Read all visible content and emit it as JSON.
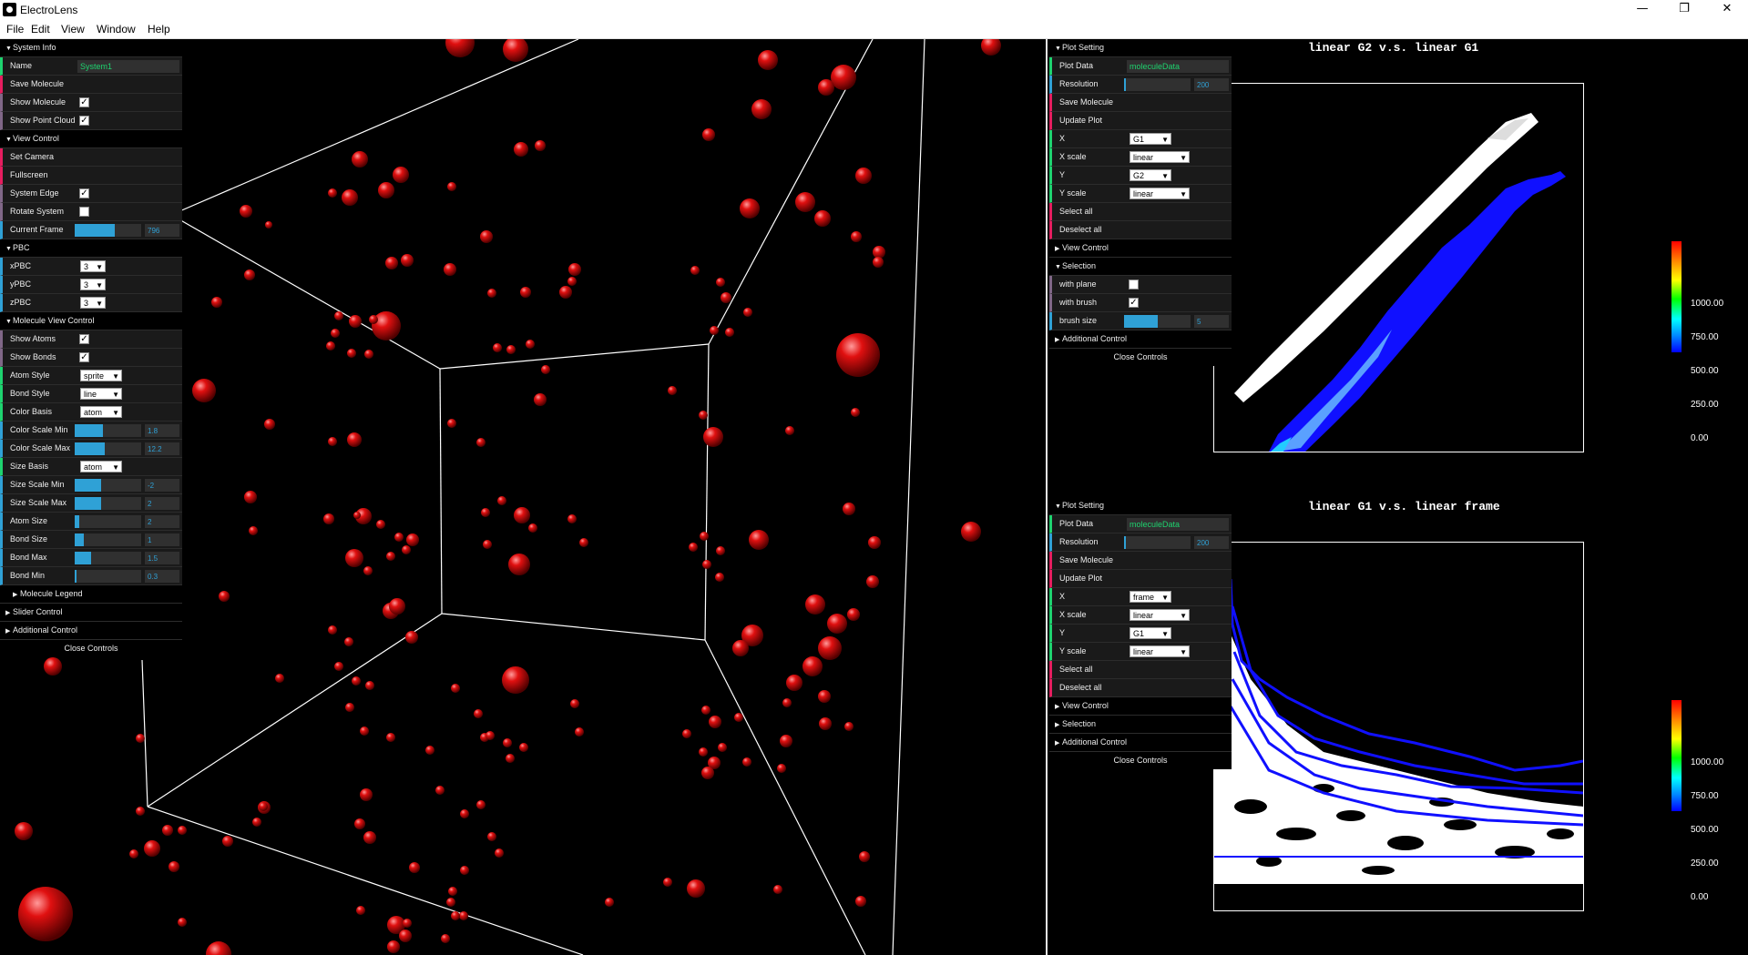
{
  "window": {
    "title": "ElectroLens",
    "minimize": "—",
    "restore": "❐",
    "close": "✕"
  },
  "menu": [
    "File",
    "Edit",
    "View",
    "Window",
    "Help"
  ],
  "left_gui": {
    "system_info": {
      "header": "System Info",
      "name_label": "Name",
      "name_value": "System1",
      "save_molecule": "Save Molecule",
      "show_molecule": "Show Molecule",
      "show_point_cloud": "Show Point Cloud"
    },
    "view_control": {
      "header": "View Control",
      "set_camera": "Set Camera",
      "fullscreen": "Fullscreen",
      "system_edge": "System Edge",
      "rotate_system": "Rotate System",
      "current_frame": "Current Frame",
      "current_frame_value": "796",
      "current_frame_fill": 0.6
    },
    "pbc": {
      "header": "PBC",
      "x_label": "xPBC",
      "x_value": "3",
      "y_label": "yPBC",
      "y_value": "3",
      "z_label": "zPBC",
      "z_value": "3"
    },
    "molecule_view": {
      "header": "Molecule View Control",
      "show_atoms": "Show Atoms",
      "show_bonds": "Show Bonds",
      "atom_style": "Atom Style",
      "atom_style_value": "sprite",
      "bond_style": "Bond Style",
      "bond_style_value": "line",
      "color_basis": "Color Basis",
      "color_basis_value": "atom",
      "color_scale_min": "Color Scale Min",
      "color_scale_min_value": "1.8",
      "color_scale_min_fill": 0.42,
      "color_scale_max": "Color Scale Max",
      "color_scale_max_value": "12.2",
      "color_scale_max_fill": 0.45,
      "size_basis": "Size Basis",
      "size_basis_value": "atom",
      "size_scale_min": "Size Scale Min",
      "size_scale_min_value": "-2",
      "size_scale_min_fill": 0.4,
      "size_scale_max": "Size Scale Max",
      "size_scale_max_value": "2",
      "size_scale_max_fill": 0.4,
      "atom_size": "Atom Size",
      "atom_size_value": "2",
      "atom_size_fill": 0.07,
      "bond_size": "Bond Size",
      "bond_size_value": "1",
      "bond_size_fill": 0.14,
      "bond_max": "Bond Max",
      "bond_max_value": "1.5",
      "bond_max_fill": 0.24,
      "bond_min": "Bond Min",
      "bond_min_value": "0.3",
      "bond_min_fill": 0.03
    },
    "molecule_legend": "Molecule Legend",
    "slider_control": "Slider Control",
    "additional_control": "Additional Control",
    "close_controls": "Close Controls"
  },
  "plot1": {
    "title": "linear G2 v.s. linear G1",
    "gui": {
      "plot_setting": "Plot Setting",
      "plot_data": "Plot Data",
      "plot_data_value": "moleculeData",
      "resolution": "Resolution",
      "resolution_value": "200",
      "resolution_fill": 0.03,
      "save_molecule": "Save Molecule",
      "update_plot": "Update Plot",
      "x": "X",
      "x_value": "G1",
      "x_scale": "X scale",
      "x_scale_value": "linear",
      "y": "Y",
      "y_value": "G2",
      "y_scale": "Y scale",
      "y_scale_value": "linear",
      "select_all": "Select all",
      "deselect_all": "Deselect all",
      "view_control": "View Control",
      "selection": "Selection",
      "with_plane": "with plane",
      "with_brush": "with brush",
      "brush_size": "brush size",
      "brush_size_value": "5",
      "brush_size_fill": 0.5,
      "additional_control": "Additional Control",
      "close_controls": "Close Controls"
    },
    "colorbar": [
      "1000.00",
      "750.00",
      "500.00",
      "250.00",
      "0.00"
    ]
  },
  "plot2": {
    "title": "linear G1 v.s. linear frame",
    "gui": {
      "plot_setting": "Plot Setting",
      "plot_data": "Plot Data",
      "plot_data_value": "moleculeData",
      "resolution": "Resolution",
      "resolution_value": "200",
      "resolution_fill": 0.03,
      "save_molecule": "Save Molecule",
      "update_plot": "Update Plot",
      "x": "X",
      "x_value": "frame",
      "x_scale": "X scale",
      "x_scale_value": "linear",
      "y": "Y",
      "y_value": "G1",
      "y_scale": "Y scale",
      "y_scale_value": "linear",
      "select_all": "Select all",
      "deselect_all": "Deselect all",
      "view_control": "View Control",
      "selection": "Selection",
      "additional_control": "Additional Control",
      "close_controls": "Close Controls"
    },
    "colorbar": [
      "1000.00",
      "750.00",
      "500.00",
      "250.00",
      "0.00"
    ]
  },
  "colors": {
    "background": "#000000",
    "atom": "#e01010",
    "edge": "#ffffff",
    "plot_dense": "#ffffff",
    "plot_sparse": "#1010ff"
  }
}
